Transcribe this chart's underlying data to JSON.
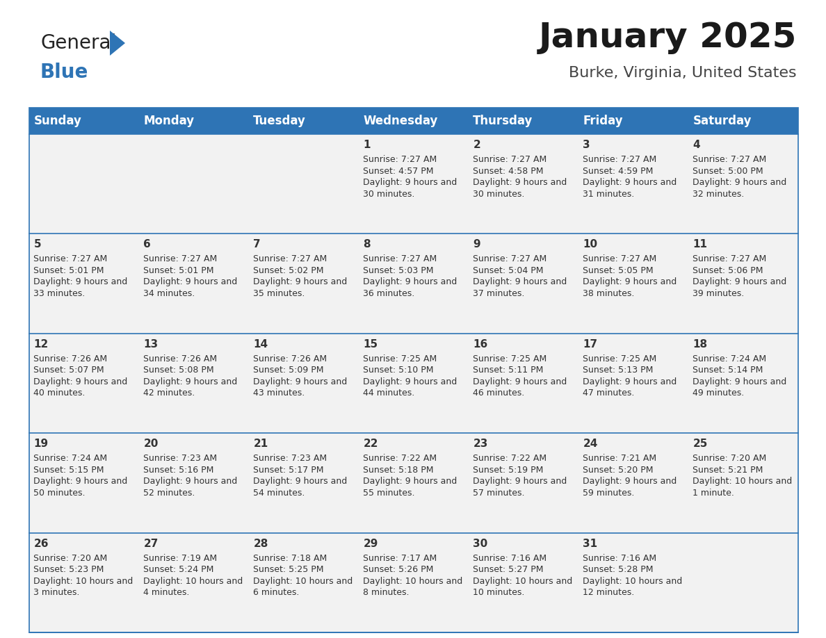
{
  "title": "January 2025",
  "subtitle": "Burke, Virginia, United States",
  "header_bg": "#2E74B5",
  "header_text_color": "#FFFFFF",
  "cell_bg": "#F2F2F2",
  "border_color": "#2E74B5",
  "text_color": "#333333",
  "day_headers": [
    "Sunday",
    "Monday",
    "Tuesday",
    "Wednesday",
    "Thursday",
    "Friday",
    "Saturday"
  ],
  "weeks": [
    [
      {
        "day": "",
        "sunrise": "",
        "sunset": "",
        "daylight": ""
      },
      {
        "day": "",
        "sunrise": "",
        "sunset": "",
        "daylight": ""
      },
      {
        "day": "",
        "sunrise": "",
        "sunset": "",
        "daylight": ""
      },
      {
        "day": "1",
        "sunrise": "7:27 AM",
        "sunset": "4:57 PM",
        "daylight": "9 hours and 30 minutes."
      },
      {
        "day": "2",
        "sunrise": "7:27 AM",
        "sunset": "4:58 PM",
        "daylight": "9 hours and 30 minutes."
      },
      {
        "day": "3",
        "sunrise": "7:27 AM",
        "sunset": "4:59 PM",
        "daylight": "9 hours and 31 minutes."
      },
      {
        "day": "4",
        "sunrise": "7:27 AM",
        "sunset": "5:00 PM",
        "daylight": "9 hours and 32 minutes."
      }
    ],
    [
      {
        "day": "5",
        "sunrise": "7:27 AM",
        "sunset": "5:01 PM",
        "daylight": "9 hours and 33 minutes."
      },
      {
        "day": "6",
        "sunrise": "7:27 AM",
        "sunset": "5:01 PM",
        "daylight": "9 hours and 34 minutes."
      },
      {
        "day": "7",
        "sunrise": "7:27 AM",
        "sunset": "5:02 PM",
        "daylight": "9 hours and 35 minutes."
      },
      {
        "day": "8",
        "sunrise": "7:27 AM",
        "sunset": "5:03 PM",
        "daylight": "9 hours and 36 minutes."
      },
      {
        "day": "9",
        "sunrise": "7:27 AM",
        "sunset": "5:04 PM",
        "daylight": "9 hours and 37 minutes."
      },
      {
        "day": "10",
        "sunrise": "7:27 AM",
        "sunset": "5:05 PM",
        "daylight": "9 hours and 38 minutes."
      },
      {
        "day": "11",
        "sunrise": "7:27 AM",
        "sunset": "5:06 PM",
        "daylight": "9 hours and 39 minutes."
      }
    ],
    [
      {
        "day": "12",
        "sunrise": "7:26 AM",
        "sunset": "5:07 PM",
        "daylight": "9 hours and 40 minutes."
      },
      {
        "day": "13",
        "sunrise": "7:26 AM",
        "sunset": "5:08 PM",
        "daylight": "9 hours and 42 minutes."
      },
      {
        "day": "14",
        "sunrise": "7:26 AM",
        "sunset": "5:09 PM",
        "daylight": "9 hours and 43 minutes."
      },
      {
        "day": "15",
        "sunrise": "7:25 AM",
        "sunset": "5:10 PM",
        "daylight": "9 hours and 44 minutes."
      },
      {
        "day": "16",
        "sunrise": "7:25 AM",
        "sunset": "5:11 PM",
        "daylight": "9 hours and 46 minutes."
      },
      {
        "day": "17",
        "sunrise": "7:25 AM",
        "sunset": "5:13 PM",
        "daylight": "9 hours and 47 minutes."
      },
      {
        "day": "18",
        "sunrise": "7:24 AM",
        "sunset": "5:14 PM",
        "daylight": "9 hours and 49 minutes."
      }
    ],
    [
      {
        "day": "19",
        "sunrise": "7:24 AM",
        "sunset": "5:15 PM",
        "daylight": "9 hours and 50 minutes."
      },
      {
        "day": "20",
        "sunrise": "7:23 AM",
        "sunset": "5:16 PM",
        "daylight": "9 hours and 52 minutes."
      },
      {
        "day": "21",
        "sunrise": "7:23 AM",
        "sunset": "5:17 PM",
        "daylight": "9 hours and 54 minutes."
      },
      {
        "day": "22",
        "sunrise": "7:22 AM",
        "sunset": "5:18 PM",
        "daylight": "9 hours and 55 minutes."
      },
      {
        "day": "23",
        "sunrise": "7:22 AM",
        "sunset": "5:19 PM",
        "daylight": "9 hours and 57 minutes."
      },
      {
        "day": "24",
        "sunrise": "7:21 AM",
        "sunset": "5:20 PM",
        "daylight": "9 hours and 59 minutes."
      },
      {
        "day": "25",
        "sunrise": "7:20 AM",
        "sunset": "5:21 PM",
        "daylight": "10 hours and 1 minute."
      }
    ],
    [
      {
        "day": "26",
        "sunrise": "7:20 AM",
        "sunset": "5:23 PM",
        "daylight": "10 hours and 3 minutes."
      },
      {
        "day": "27",
        "sunrise": "7:19 AM",
        "sunset": "5:24 PM",
        "daylight": "10 hours and 4 minutes."
      },
      {
        "day": "28",
        "sunrise": "7:18 AM",
        "sunset": "5:25 PM",
        "daylight": "10 hours and 6 minutes."
      },
      {
        "day": "29",
        "sunrise": "7:17 AM",
        "sunset": "5:26 PM",
        "daylight": "10 hours and 8 minutes."
      },
      {
        "day": "30",
        "sunrise": "7:16 AM",
        "sunset": "5:27 PM",
        "daylight": "10 hours and 10 minutes."
      },
      {
        "day": "31",
        "sunrise": "7:16 AM",
        "sunset": "5:28 PM",
        "daylight": "10 hours and 12 minutes."
      },
      {
        "day": "",
        "sunrise": "",
        "sunset": "",
        "daylight": ""
      }
    ]
  ],
  "logo_general_color": "#222222",
  "logo_blue_color": "#2E74B5",
  "logo_triangle_color": "#2E74B5",
  "title_fontsize": 36,
  "subtitle_fontsize": 16,
  "header_fontsize": 12,
  "day_num_fontsize": 11,
  "cell_text_fontsize": 9
}
